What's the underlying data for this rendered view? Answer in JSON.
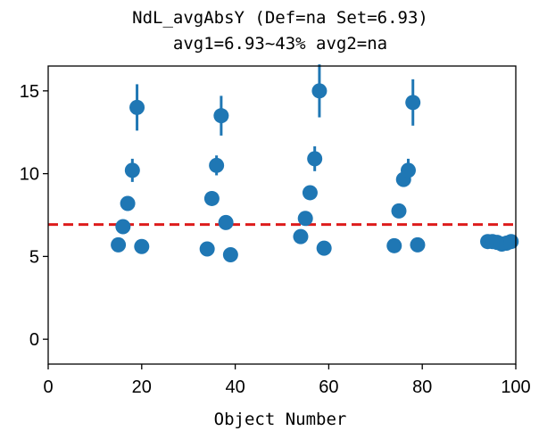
{
  "chart_data": {
    "type": "scatter",
    "title": "NdL_avgAbsY (Def=na Set=6.93)",
    "subtitle": "avg1=6.93~43% avg2=na",
    "xlabel": "Object Number",
    "ylabel": "",
    "xlim": [
      0,
      100
    ],
    "ylim": [
      -1.5,
      16.5
    ],
    "xticks": [
      "0",
      "20",
      "40",
      "60",
      "80",
      "100"
    ],
    "yticks": [
      "0",
      "5",
      "10",
      "15"
    ],
    "grid": false,
    "reference_line": {
      "y": 6.93,
      "color": "#dd1c1c",
      "style": "dashed"
    },
    "marker_color": "#1f77b4",
    "points": [
      {
        "x": 15,
        "y": 5.7
      },
      {
        "x": 16,
        "y": 6.8
      },
      {
        "x": 17,
        "y": 8.2
      },
      {
        "x": 18,
        "y": 10.2,
        "err": 0.7
      },
      {
        "x": 19,
        "y": 14.0,
        "err": 1.4
      },
      {
        "x": 20,
        "y": 5.6
      },
      {
        "x": 34,
        "y": 5.45
      },
      {
        "x": 35,
        "y": 8.5
      },
      {
        "x": 36,
        "y": 10.5,
        "err": 0.6
      },
      {
        "x": 37,
        "y": 13.5,
        "err": 1.2
      },
      {
        "x": 38,
        "y": 7.05
      },
      {
        "x": 39,
        "y": 5.1
      },
      {
        "x": 54,
        "y": 6.2
      },
      {
        "x": 55,
        "y": 7.3
      },
      {
        "x": 56,
        "y": 8.85
      },
      {
        "x": 57,
        "y": 10.9,
        "err": 0.75
      },
      {
        "x": 58,
        "y": 15.0,
        "err": 1.6
      },
      {
        "x": 59,
        "y": 5.5
      },
      {
        "x": 74,
        "y": 5.65
      },
      {
        "x": 75,
        "y": 7.75
      },
      {
        "x": 76,
        "y": 9.65
      },
      {
        "x": 77,
        "y": 10.2,
        "err": 0.7
      },
      {
        "x": 78,
        "y": 14.3,
        "err": 1.4
      },
      {
        "x": 79,
        "y": 5.7
      },
      {
        "x": 94,
        "y": 5.9
      },
      {
        "x": 95,
        "y": 5.9
      },
      {
        "x": 96,
        "y": 5.85
      },
      {
        "x": 97,
        "y": 5.75
      },
      {
        "x": 98,
        "y": 5.8
      },
      {
        "x": 99,
        "y": 5.9
      }
    ]
  }
}
